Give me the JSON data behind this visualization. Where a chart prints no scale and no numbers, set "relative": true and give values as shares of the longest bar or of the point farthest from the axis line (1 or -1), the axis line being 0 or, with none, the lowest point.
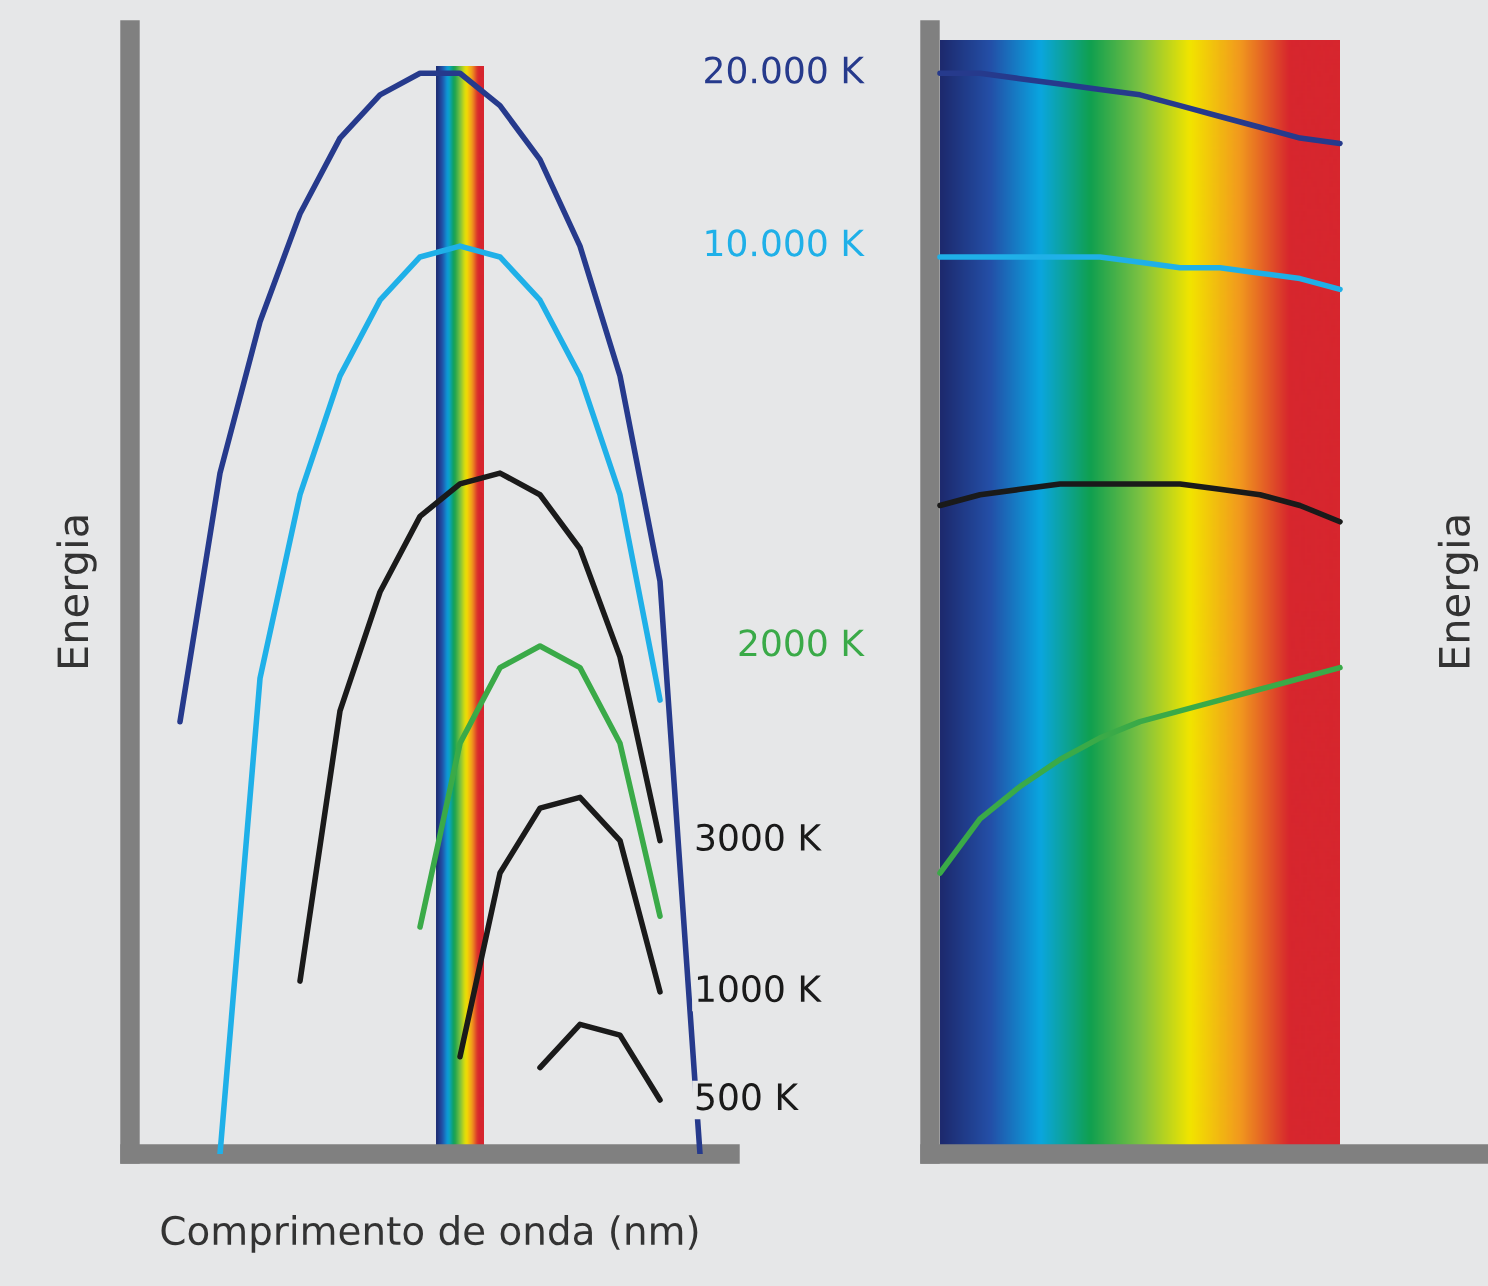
{
  "chart_data": [
    {
      "type": "line",
      "relative": true,
      "tick_labels": false,
      "xlabel": "Comprimento de onda (nm)",
      "ylabel": "Energia",
      "categories": [
        null,
        null,
        null,
        null,
        null,
        null,
        null,
        null,
        null,
        null,
        null,
        null,
        null,
        null,
        null
      ],
      "series": [
        {
          "name": "20.000 K",
          "color": "#263a8c",
          "values": [
            null,
            0.4,
            0.63,
            0.77,
            0.87,
            0.94,
            0.98,
            1.0,
            1.0,
            0.97,
            0.92,
            0.84,
            0.72,
            0.53,
            0
          ]
        },
        {
          "name": "10.000 K",
          "color": "#1fb0e8",
          "values": [
            null,
            null,
            0,
            0.44,
            0.61,
            0.72,
            0.79,
            0.83,
            0.84,
            0.83,
            0.79,
            0.72,
            0.61,
            0.42,
            null
          ]
        },
        {
          "name": "3000 K",
          "color": "#1a1a1a",
          "values": [
            null,
            null,
            null,
            null,
            0.16,
            0.41,
            0.52,
            0.59,
            0.62,
            0.63,
            0.61,
            0.56,
            0.46,
            0.29,
            null
          ]
        },
        {
          "name": "2000 K",
          "color": "#3aaa48",
          "values": [
            null,
            null,
            null,
            null,
            null,
            null,
            null,
            0.21,
            0.38,
            0.45,
            0.47,
            0.45,
            0.38,
            0.22,
            null
          ]
        },
        {
          "name": "1000 K",
          "color": "#1a1a1a",
          "values": [
            null,
            null,
            null,
            null,
            null,
            null,
            null,
            null,
            0.09,
            0.26,
            0.32,
            0.33,
            0.29,
            0.15,
            null
          ]
        },
        {
          "name": "500 K",
          "color": "#1a1a1a",
          "values": [
            null,
            null,
            null,
            null,
            null,
            null,
            null,
            null,
            null,
            null,
            0.08,
            0.12,
            0.11,
            0.05,
            null
          ]
        }
      ]
    },
    {
      "type": "line",
      "relative": true,
      "tick_labels": false,
      "ylabel": "Energia",
      "categories": [
        null,
        null,
        null,
        null,
        null,
        null,
        null,
        null,
        null,
        null,
        null
      ],
      "series": [
        {
          "color": "#263a8c",
          "values": [
            1.0,
            1.0,
            0.995,
            0.99,
            0.985,
            0.98,
            0.97,
            0.96,
            0.95,
            0.94,
            0.935
          ]
        },
        {
          "color": "#1fb0e8",
          "values": [
            0.83,
            0.83,
            0.83,
            0.83,
            0.83,
            0.825,
            0.82,
            0.82,
            0.815,
            0.81,
            0.8
          ]
        },
        {
          "color": "#1a1a1a",
          "values": [
            0.6,
            0.61,
            0.615,
            0.62,
            0.62,
            0.62,
            0.62,
            0.615,
            0.61,
            0.6,
            0.585
          ]
        },
        {
          "color": "#3aaa48",
          "values": [
            0.26,
            0.31,
            0.34,
            0.365,
            0.385,
            0.4,
            0.41,
            0.42,
            0.43,
            0.44,
            0.45
          ]
        }
      ]
    }
  ]
}
